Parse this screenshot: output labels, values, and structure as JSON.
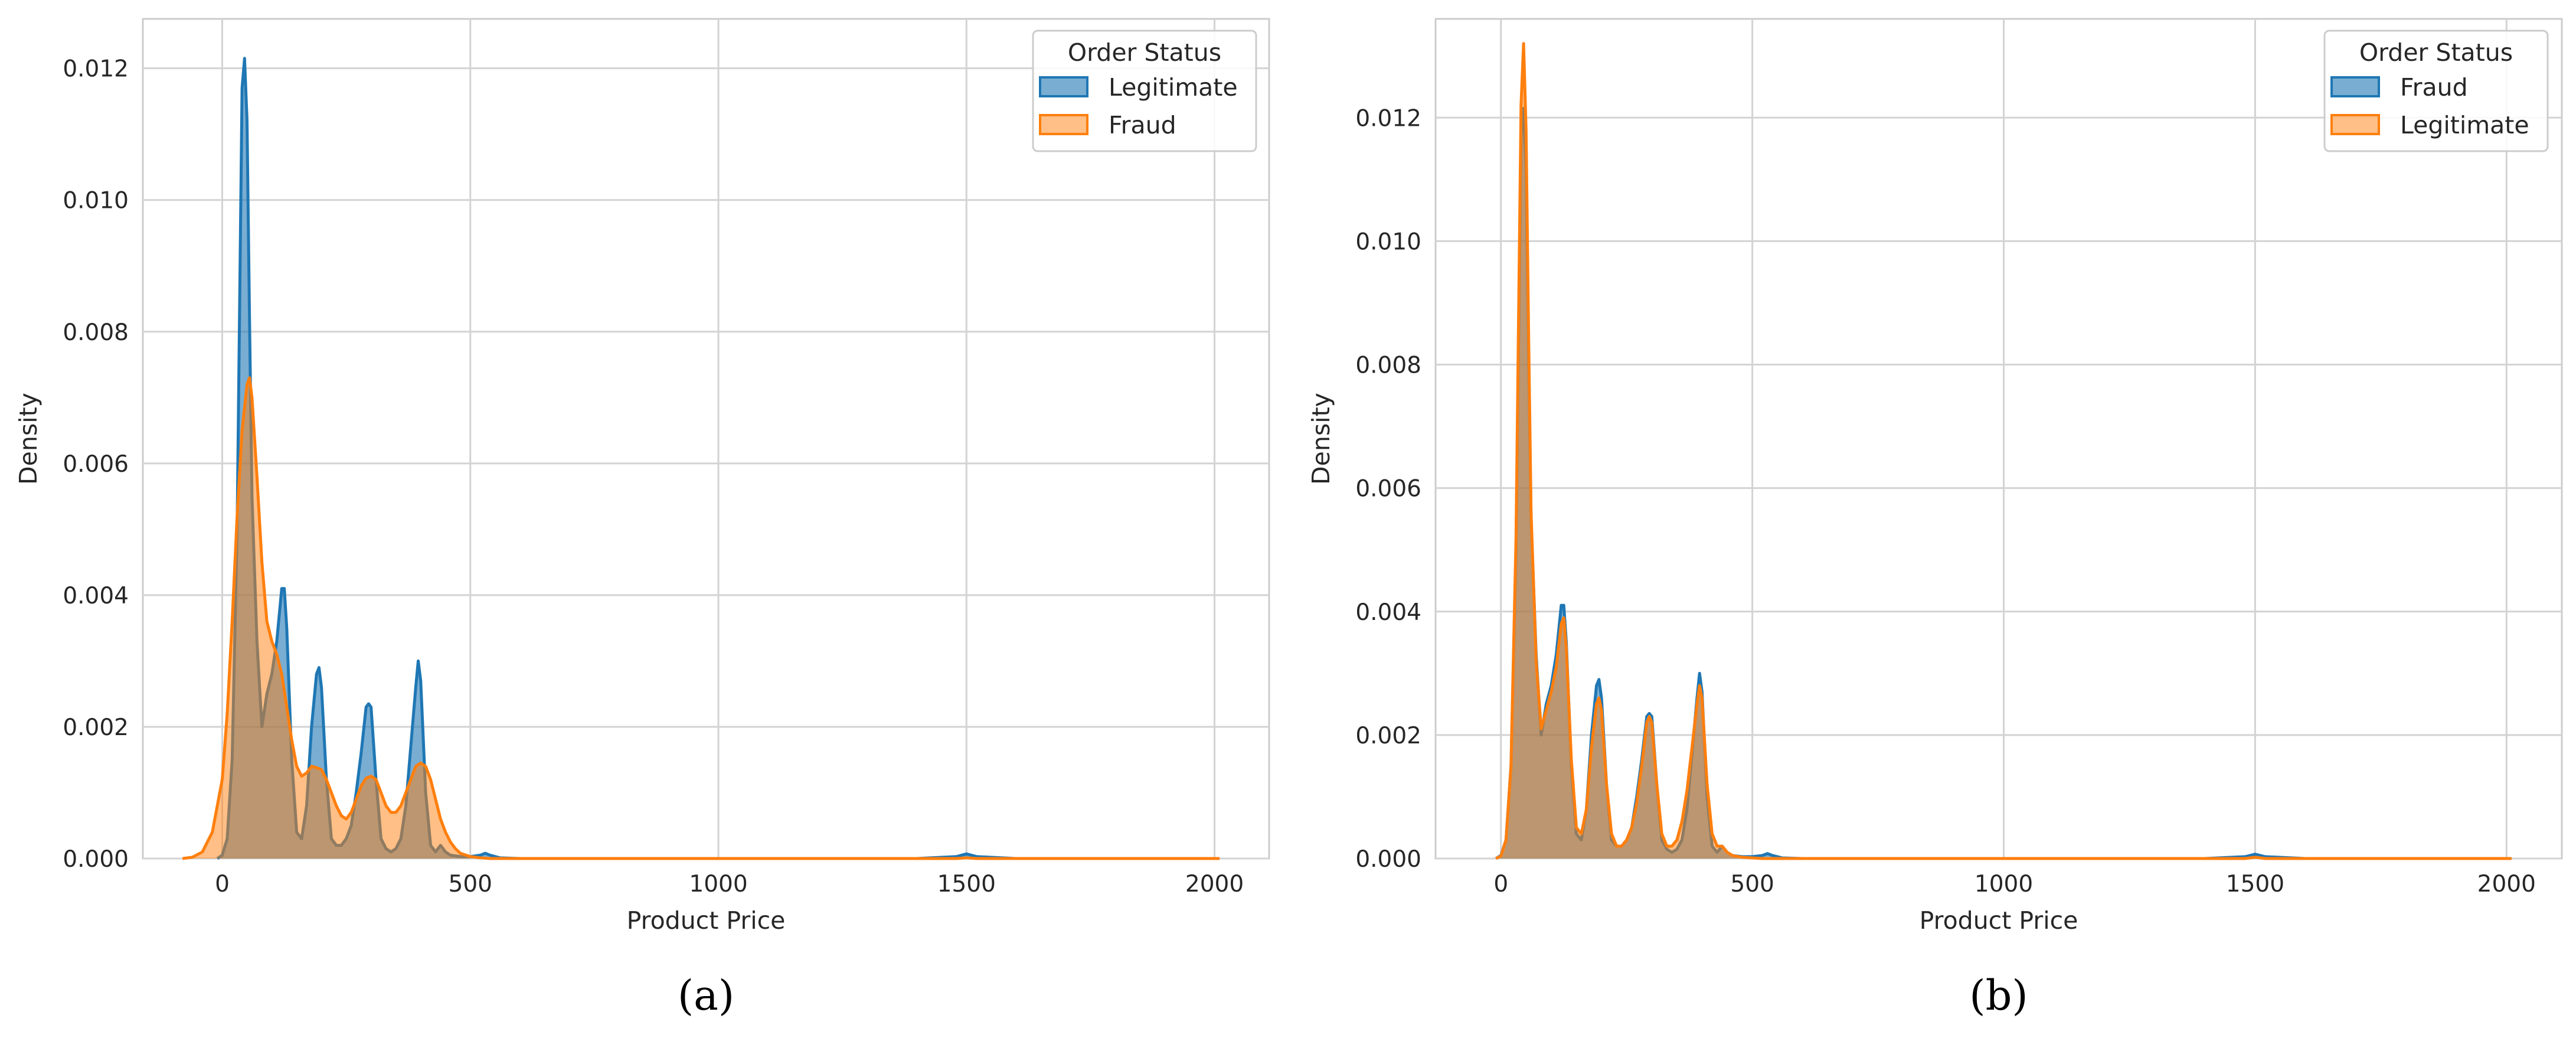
{
  "colors": {
    "blue": "#1f77b4",
    "blue_fill": "#1f77b4",
    "orange": "#ff7f0e",
    "orange_fill": "#ff7f0e",
    "grid": "#d3d3d3",
    "spine": "#cccccc"
  },
  "chart_data": [
    {
      "type": "area",
      "panel_label": "(a)",
      "xlabel": "Product Price",
      "ylabel": "Density",
      "xlim": [
        -160,
        2110
      ],
      "ylim": [
        0,
        0.01275
      ],
      "xticks": [
        0,
        500,
        1000,
        1500,
        2000
      ],
      "yticks": [
        0.0,
        0.002,
        0.004,
        0.006,
        0.008,
        0.01,
        0.012
      ],
      "ytick_labels": [
        "0.000",
        "0.002",
        "0.004",
        "0.006",
        "0.008",
        "0.010",
        "0.012"
      ],
      "grid": true,
      "legend": {
        "title": "Order Status",
        "placement": "top-right"
      },
      "series": [
        {
          "name": "Legitimate",
          "color": "#1f77b4",
          "x": [
            -10,
            0,
            10,
            20,
            30,
            40,
            45,
            50,
            55,
            60,
            70,
            80,
            90,
            100,
            110,
            120,
            125,
            130,
            140,
            150,
            160,
            170,
            180,
            190,
            195,
            200,
            210,
            220,
            230,
            240,
            250,
            260,
            270,
            280,
            290,
            295,
            300,
            310,
            320,
            330,
            340,
            350,
            360,
            370,
            380,
            390,
            395,
            400,
            410,
            420,
            430,
            440,
            450,
            460,
            480,
            500,
            520,
            530,
            540,
            560,
            600,
            700,
            1000,
            1400,
            1480,
            1500,
            1520,
            1600,
            2000,
            2010
          ],
          "y": [
            0,
            5e-05,
            0.0003,
            0.0015,
            0.005,
            0.0117,
            0.01215,
            0.0112,
            0.0082,
            0.0055,
            0.0033,
            0.002,
            0.0025,
            0.0028,
            0.0033,
            0.0041,
            0.0041,
            0.0035,
            0.0015,
            0.0004,
            0.0003,
            0.0008,
            0.002,
            0.0028,
            0.0029,
            0.0026,
            0.0012,
            0.0003,
            0.0002,
            0.0002,
            0.0003,
            0.0005,
            0.001,
            0.0016,
            0.0023,
            0.00235,
            0.0023,
            0.0012,
            0.0003,
            0.00015,
            0.0001,
            0.00015,
            0.0003,
            0.0008,
            0.0017,
            0.0026,
            0.003,
            0.0027,
            0.001,
            0.0002,
            0.0001,
            0.0002,
            0.0001,
            5e-05,
            3e-05,
            3e-05,
            5e-05,
            8e-05,
            5e-05,
            1e-05,
            0,
            0,
            0,
            0,
            3e-05,
            7e-05,
            3e-05,
            0,
            0,
            0
          ]
        },
        {
          "name": "Fraud",
          "color": "#ff7f0e",
          "x": [
            -80,
            -60,
            -40,
            -20,
            0,
            10,
            20,
            30,
            40,
            50,
            55,
            60,
            70,
            80,
            90,
            100,
            110,
            120,
            130,
            140,
            150,
            160,
            170,
            180,
            190,
            200,
            210,
            220,
            230,
            240,
            250,
            260,
            270,
            280,
            290,
            300,
            310,
            320,
            330,
            340,
            350,
            360,
            370,
            380,
            390,
            400,
            410,
            420,
            430,
            440,
            450,
            460,
            470,
            480,
            500,
            520,
            540,
            560,
            600,
            700,
            1000,
            1480,
            1500,
            1520,
            2000,
            2010
          ],
          "y": [
            0,
            2e-05,
            0.0001,
            0.0004,
            0.0012,
            0.0022,
            0.0036,
            0.0052,
            0.0065,
            0.0072,
            0.0073,
            0.007,
            0.0058,
            0.0045,
            0.0036,
            0.0033,
            0.0031,
            0.0028,
            0.0023,
            0.0018,
            0.0014,
            0.00125,
            0.0013,
            0.0014,
            0.00138,
            0.00135,
            0.0012,
            0.001,
            0.0008,
            0.00065,
            0.0006,
            0.0007,
            0.0009,
            0.0011,
            0.00122,
            0.00125,
            0.0012,
            0.001,
            0.0008,
            0.0007,
            0.0007,
            0.0008,
            0.001,
            0.0012,
            0.0014,
            0.00145,
            0.0014,
            0.0012,
            0.0009,
            0.0006,
            0.0004,
            0.00025,
            0.00015,
            8e-05,
            3e-05,
            1e-05,
            0,
            0,
            0,
            0,
            0,
            0,
            1e-05,
            0,
            0,
            0
          ]
        }
      ]
    },
    {
      "type": "area",
      "panel_label": "(b)",
      "xlabel": "Product Price",
      "ylabel": "Density",
      "xlim": [
        -130,
        2110
      ],
      "ylim": [
        0,
        0.0136
      ],
      "xticks": [
        0,
        500,
        1000,
        1500,
        2000
      ],
      "yticks": [
        0.0,
        0.002,
        0.004,
        0.006,
        0.008,
        0.01,
        0.012
      ],
      "ytick_labels": [
        "0.000",
        "0.002",
        "0.004",
        "0.006",
        "0.008",
        "0.010",
        "0.012"
      ],
      "grid": true,
      "legend": {
        "title": "Order Status",
        "placement": "top-right"
      },
      "series": [
        {
          "name": "Fraud",
          "color": "#1f77b4",
          "x": [
            -10,
            0,
            10,
            20,
            30,
            40,
            45,
            50,
            55,
            60,
            70,
            80,
            90,
            100,
            110,
            120,
            125,
            130,
            140,
            150,
            160,
            170,
            180,
            190,
            195,
            200,
            210,
            220,
            230,
            240,
            250,
            260,
            270,
            280,
            290,
            295,
            300,
            310,
            320,
            330,
            340,
            350,
            360,
            370,
            380,
            390,
            395,
            400,
            410,
            420,
            430,
            440,
            450,
            460,
            480,
            500,
            520,
            530,
            540,
            560,
            600,
            700,
            1000,
            1400,
            1480,
            1500,
            1520,
            1600,
            2000,
            2010
          ],
          "y": [
            0,
            5e-05,
            0.0003,
            0.0015,
            0.005,
            0.0117,
            0.01215,
            0.0112,
            0.0082,
            0.0055,
            0.0033,
            0.002,
            0.0025,
            0.0028,
            0.0033,
            0.0041,
            0.0041,
            0.0035,
            0.0015,
            0.0004,
            0.0003,
            0.0008,
            0.002,
            0.0028,
            0.0029,
            0.0026,
            0.0012,
            0.0003,
            0.0002,
            0.0002,
            0.0003,
            0.0005,
            0.001,
            0.0016,
            0.0023,
            0.00235,
            0.0023,
            0.0012,
            0.0003,
            0.00015,
            0.0001,
            0.00015,
            0.0003,
            0.0008,
            0.0017,
            0.0026,
            0.003,
            0.0027,
            0.001,
            0.0002,
            0.0001,
            0.0002,
            0.0001,
            5e-05,
            3e-05,
            3e-05,
            5e-05,
            8e-05,
            5e-05,
            1e-05,
            0,
            0,
            0,
            0,
            3e-05,
            7e-05,
            3e-05,
            0,
            0,
            0
          ]
        },
        {
          "name": "Legitimate",
          "color": "#ff7f0e",
          "x": [
            -10,
            0,
            10,
            20,
            30,
            40,
            45,
            50,
            55,
            60,
            70,
            80,
            90,
            100,
            110,
            120,
            125,
            130,
            140,
            150,
            160,
            170,
            180,
            190,
            195,
            200,
            210,
            220,
            230,
            240,
            250,
            260,
            270,
            280,
            290,
            295,
            300,
            310,
            320,
            330,
            340,
            350,
            360,
            370,
            380,
            390,
            395,
            400,
            410,
            420,
            430,
            440,
            450,
            460,
            480,
            500,
            520,
            540,
            560,
            600,
            700,
            1000,
            1480,
            1500,
            1520,
            2000,
            2010
          ],
          "y": [
            0,
            4e-05,
            0.0003,
            0.0015,
            0.0052,
            0.0122,
            0.0132,
            0.0118,
            0.0085,
            0.0056,
            0.0032,
            0.0021,
            0.0024,
            0.0027,
            0.0031,
            0.0038,
            0.0039,
            0.0034,
            0.0016,
            0.0005,
            0.0004,
            0.0008,
            0.0018,
            0.0025,
            0.0026,
            0.0024,
            0.0012,
            0.0004,
            0.0002,
            0.0002,
            0.0003,
            0.0005,
            0.0009,
            0.0015,
            0.0022,
            0.0023,
            0.0022,
            0.0012,
            0.0004,
            0.0002,
            0.0002,
            0.0003,
            0.0006,
            0.0011,
            0.0018,
            0.0025,
            0.0028,
            0.0026,
            0.0012,
            0.0004,
            0.0002,
            0.0002,
            0.0001,
            5e-05,
            2e-05,
            1e-05,
            0,
            0,
            0,
            0,
            0,
            0,
            0,
            2e-05,
            0,
            0,
            0
          ]
        }
      ]
    }
  ]
}
